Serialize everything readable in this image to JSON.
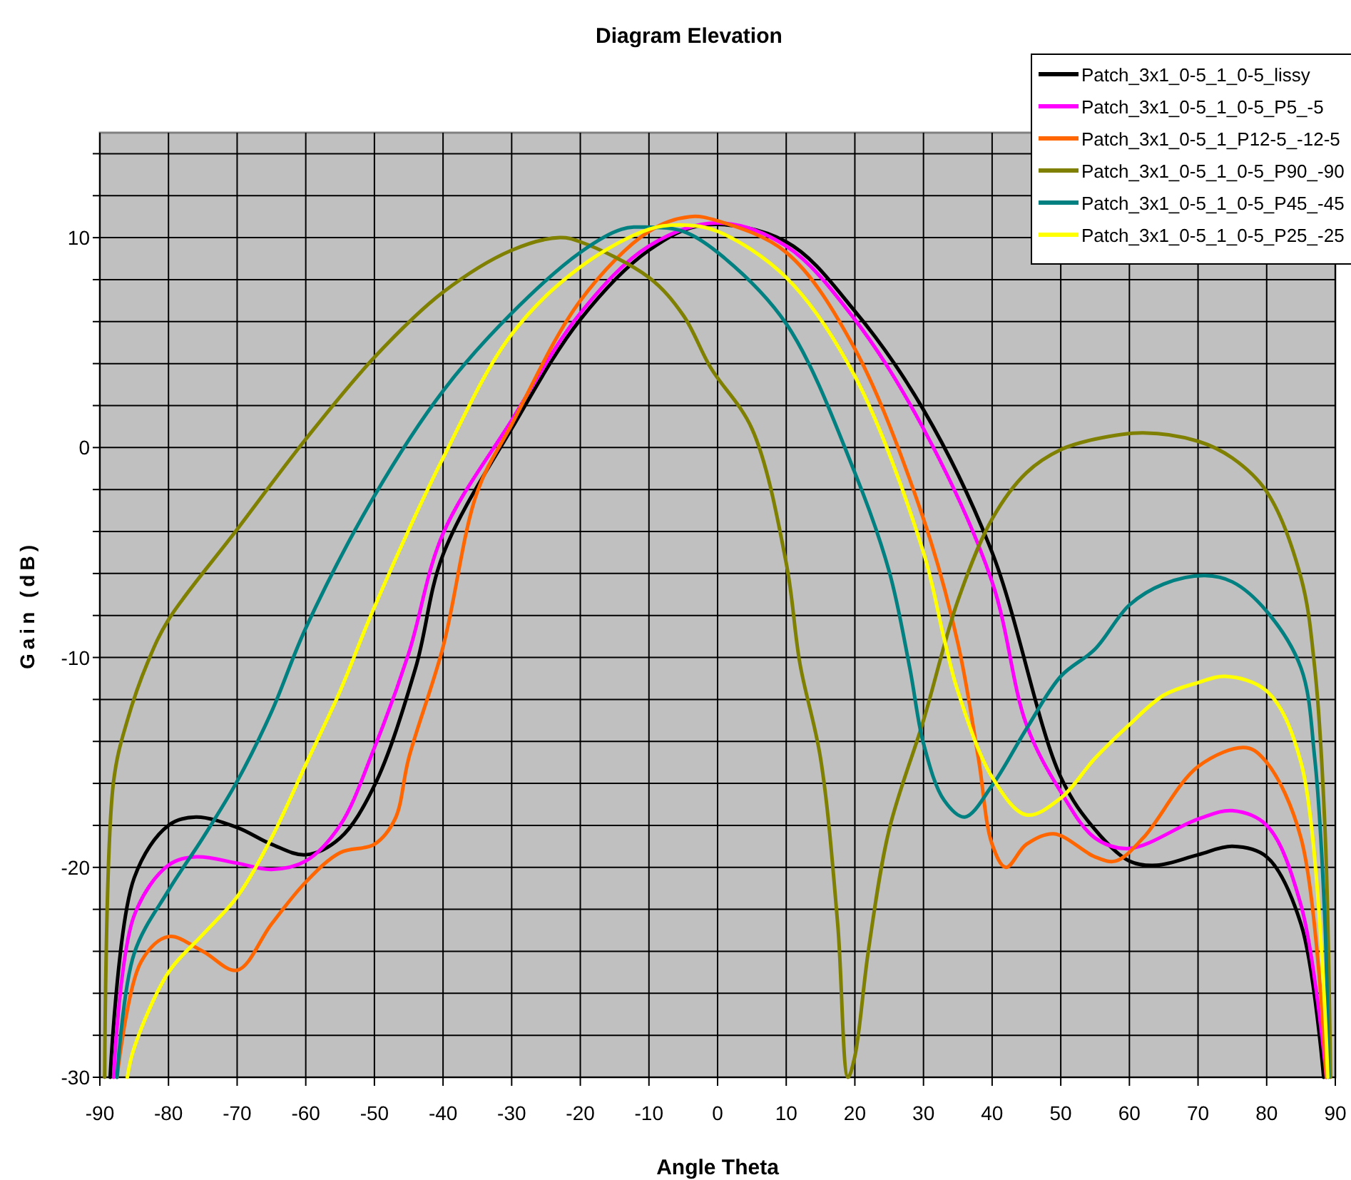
{
  "chart_data": {
    "type": "line",
    "title": "Diagram Elevation",
    "xlabel": "Angle Theta",
    "ylabel": "Gain (dB)",
    "xlim": [
      -90,
      90
    ],
    "xticks": [
      -90,
      -80,
      -70,
      -60,
      -50,
      -40,
      -30,
      -20,
      -10,
      0,
      10,
      20,
      30,
      40,
      50,
      60,
      70,
      80,
      90
    ],
    "ylim": [
      -30,
      15
    ],
    "yticks": [
      -30,
      {
        "value": -28,
        "label": null
      },
      {
        "value": -26,
        "label": null
      },
      {
        "value": -24,
        "label": null
      },
      {
        "value": -22,
        "label": null
      },
      -20,
      {
        "value": -18,
        "label": null
      },
      {
        "value": -16,
        "label": null
      },
      {
        "value": -14,
        "label": null
      },
      {
        "value": -12,
        "label": null
      },
      -10,
      {
        "value": -8,
        "label": null
      },
      {
        "value": -6,
        "label": null
      },
      {
        "value": -4,
        "label": null
      },
      {
        "value": -2,
        "label": null
      },
      0,
      {
        "value": 2,
        "label": null
      },
      {
        "value": 4,
        "label": null
      },
      {
        "value": 6,
        "label": null
      },
      {
        "value": 8,
        "label": null
      },
      10,
      {
        "value": 12,
        "label": null
      },
      {
        "value": 14,
        "label": null
      }
    ],
    "grid": true,
    "legend": "top right",
    "marker": "none",
    "line_style": "solid",
    "series": [
      {
        "name": "Patch_3x1_0-5_1_0-5_lissy",
        "color": "#000000",
        "x": [
          -88.5,
          -85,
          -80,
          -76,
          -70,
          -65,
          -60,
          -55,
          -50,
          -44,
          -40,
          -30,
          -20,
          -10,
          -2,
          10,
          20,
          30,
          40,
          50,
          55,
          60,
          64,
          70,
          75,
          80,
          85,
          88.3
        ],
        "values": [
          -30,
          -20.5,
          -18,
          -17.6,
          -18.1,
          -18.9,
          -19.4,
          -18.6,
          -16.1,
          -10.5,
          -5.1,
          0.9,
          6.1,
          9.4,
          10.6,
          9.8,
          6.5,
          1.8,
          -5,
          -15.7,
          -18.2,
          -19.7,
          -19.9,
          -19.4,
          -19,
          -19.5,
          -22.7,
          -30
        ]
      },
      {
        "name": "Patch_3x1_0-5_1_0-5_P5_-5",
        "color": "#ff00ff",
        "x": [
          -88,
          -85,
          -80,
          -76,
          -70,
          -65,
          -60,
          -55,
          -50,
          -45,
          -40,
          -30,
          -20,
          -10,
          0,
          10,
          20,
          30,
          40,
          45,
          50,
          55,
          60,
          70,
          75,
          80,
          85,
          88.7
        ],
        "values": [
          -30,
          -22.3,
          -19.9,
          -19.5,
          -19.8,
          -20.1,
          -19.7,
          -18,
          -14.3,
          -9.8,
          -4.1,
          1.3,
          6.4,
          9.6,
          10.7,
          9.6,
          6.1,
          0.9,
          -6.4,
          -13.2,
          -16.4,
          -18.6,
          -19.1,
          -17.7,
          -17.3,
          -18,
          -21.8,
          -30
        ]
      },
      {
        "name": "Patch_3x1_0-5_1_P12-5_-12-5",
        "color": "#ff6600",
        "x": [
          -87.5,
          -84,
          -80,
          -75,
          -70,
          -65,
          -60,
          -55,
          -50,
          -47,
          -45,
          -40,
          -35,
          -30,
          -20,
          -10,
          -4,
          0,
          10,
          20,
          30,
          35,
          38,
          40,
          42,
          45,
          49,
          55,
          58,
          62,
          70,
          77,
          80,
          85,
          88.7
        ],
        "values": [
          -30,
          -24.5,
          -23.3,
          -24,
          -24.9,
          -22.7,
          -20.7,
          -19.3,
          -18.9,
          -17.7,
          -14.8,
          -9.5,
          -2.1,
          1.1,
          7,
          10.3,
          11,
          10.8,
          9.3,
          4.7,
          -3.4,
          -9.3,
          -14.8,
          -18.9,
          -20,
          -18.9,
          -18.4,
          -19.5,
          -19.7,
          -18.6,
          -15.2,
          -14.3,
          -15,
          -18.6,
          -30
        ]
      },
      {
        "name": "Patch_3x1_0-5_1_0-5_P90_-90",
        "color": "#808000",
        "x": [
          -89.3,
          -88,
          -86,
          -83,
          -80,
          -70,
          -60,
          -50,
          -40,
          -30,
          -23,
          -20,
          -10,
          -5,
          -1,
          5,
          10,
          12,
          15,
          17.5,
          19,
          20,
          22,
          25,
          30,
          35,
          40,
          45,
          50,
          55,
          62,
          70,
          75,
          80,
          85,
          87,
          88.5,
          89.3
        ],
        "values": [
          -30,
          -15.9,
          -13,
          -10.2,
          -8.2,
          -3.9,
          0.4,
          4.3,
          7.4,
          9.4,
          10,
          9.8,
          8.1,
          6.3,
          3.8,
          0.9,
          -5.5,
          -10.3,
          -14.8,
          -22.7,
          -30,
          -29,
          -23.9,
          -18.2,
          -13,
          -7.3,
          -3.4,
          -1.2,
          -0.1,
          0.4,
          0.7,
          0.3,
          -0.5,
          -2.1,
          -6.2,
          -10.5,
          -18.2,
          -30
        ]
      },
      {
        "name": "Patch_3x1_0-5_1_0-5_P45_-45",
        "color": "#008080",
        "x": [
          -87.5,
          -85,
          -80,
          -75,
          -70,
          -65,
          -60,
          -50,
          -40,
          -30,
          -20,
          -14,
          -10,
          -5,
          0,
          10,
          20,
          25,
          28,
          30,
          33,
          36,
          40,
          45,
          50,
          55,
          60,
          65,
          71,
          75,
          80,
          85,
          87,
          88.5,
          89
        ],
        "values": [
          -30,
          -24.1,
          -21.1,
          -18.6,
          -15.9,
          -12.6,
          -8.6,
          -2.3,
          2.7,
          6.4,
          9.3,
          10.4,
          10.5,
          10.3,
          9.3,
          5.9,
          -1.2,
          -5.9,
          -10.5,
          -14.1,
          -16.8,
          -17.6,
          -16.1,
          -13.4,
          -10.9,
          -9.6,
          -7.5,
          -6.5,
          -6.1,
          -6.4,
          -7.8,
          -10.5,
          -14.8,
          -22.7,
          -30
        ]
      },
      {
        "name": "Patch_3x1_0-5_1_0-5_P25_-25",
        "color": "#ffff00",
        "x": [
          -86,
          -85,
          -80,
          -75,
          -70,
          -65,
          -60,
          -55,
          -50,
          -40,
          -30,
          -20,
          -10,
          -5,
          0,
          10,
          20,
          30,
          33,
          35,
          40,
          45,
          50,
          55,
          60,
          65,
          70,
          74,
          80,
          85,
          88.9
        ],
        "values": [
          -30,
          -28.6,
          -25,
          -23.2,
          -21.4,
          -18.6,
          -15.1,
          -11.6,
          -7.6,
          -0.5,
          5.4,
          8.6,
          10.4,
          10.6,
          10.3,
          8.1,
          3.4,
          -5,
          -9.1,
          -11.6,
          -15.7,
          -17.5,
          -16.7,
          -14.8,
          -13.2,
          -11.8,
          -11.2,
          -10.9,
          -11.6,
          -15,
          -30
        ]
      }
    ]
  }
}
